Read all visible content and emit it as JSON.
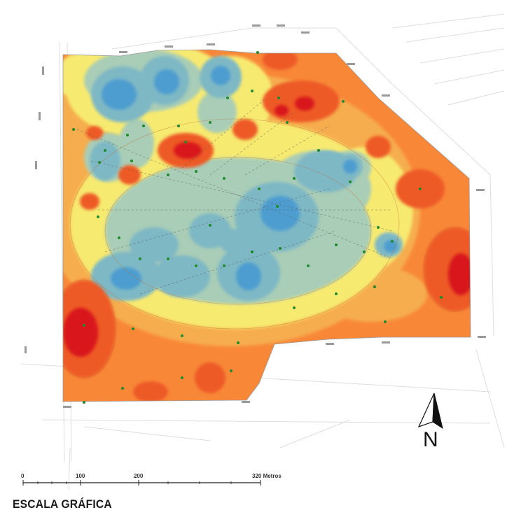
{
  "map": {
    "scale_bar": {
      "title": "ESCALA GRÁFICA",
      "ticks": [
        "0",
        "100",
        "200",
        "320 Metros"
      ]
    },
    "north_arrow": {
      "label": "N"
    },
    "colors": {
      "red": "#d8181a",
      "orange_red": "#ee5a26",
      "orange": "#f88838",
      "light_orange": "#f6ad4e",
      "yellow": "#f7ea70",
      "pale_teal": "#a9cdb6",
      "teal": "#7eb8c5",
      "blue": "#4d9dd0",
      "dark_blue": "#2f86c8"
    }
  }
}
